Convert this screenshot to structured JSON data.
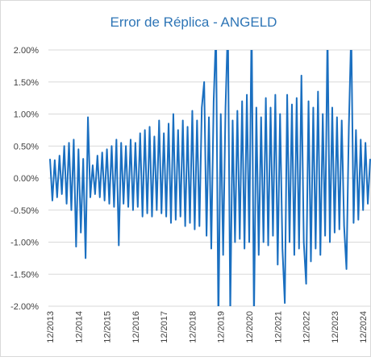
{
  "chart_data": {
    "type": "line",
    "title": "Error de Réplica - ANGELD",
    "categories": [
      "12/2013",
      null,
      null,
      null,
      null,
      null,
      null,
      null,
      null,
      null,
      null,
      null,
      "12/2014",
      null,
      null,
      null,
      null,
      null,
      null,
      null,
      null,
      null,
      null,
      null,
      "12/2015",
      null,
      null,
      null,
      null,
      null,
      null,
      null,
      null,
      null,
      null,
      null,
      "12/2016",
      null,
      null,
      null,
      null,
      null,
      null,
      null,
      null,
      null,
      null,
      null,
      "12/2017",
      null,
      null,
      null,
      null,
      null,
      null,
      null,
      null,
      null,
      null,
      null,
      "12/2018",
      null,
      null,
      null,
      null,
      null,
      null,
      null,
      null,
      null,
      null,
      null,
      "12/2019",
      null,
      null,
      null,
      null,
      null,
      null,
      null,
      null,
      null,
      null,
      null,
      "12/2020",
      null,
      null,
      null,
      null,
      null,
      null,
      null,
      null,
      null,
      null,
      null,
      "12/2021",
      null,
      null,
      null,
      null,
      null,
      null,
      null,
      null,
      null,
      null,
      null,
      "12/2022",
      null,
      null,
      null,
      null,
      null,
      null,
      null,
      null,
      null,
      null,
      null,
      "12/2023",
      null,
      null,
      null,
      null,
      null,
      null,
      null,
      null,
      null,
      null,
      null,
      "12/2024",
      null,
      null,
      null
    ],
    "series": [
      {
        "name": "Error de Réplica",
        "color": "#1a6fc0",
        "values": [
          0.3,
          -0.35,
          0.28,
          -0.3,
          0.35,
          -0.25,
          0.5,
          -0.4,
          0.55,
          -0.5,
          0.6,
          -1.07,
          0.45,
          -0.85,
          0.3,
          -1.25,
          0.95,
          -0.3,
          0.2,
          -0.25,
          0.35,
          -0.3,
          0.4,
          -0.35,
          0.45,
          -0.4,
          0.5,
          -0.45,
          0.6,
          -1.05,
          0.55,
          -0.4,
          0.5,
          -0.45,
          0.6,
          -0.5,
          0.55,
          -0.45,
          0.7,
          -0.6,
          0.75,
          -0.55,
          0.8,
          -0.6,
          0.65,
          -0.5,
          0.9,
          -0.55,
          0.7,
          -0.6,
          0.85,
          -0.7,
          1.0,
          -0.65,
          0.75,
          -0.6,
          0.9,
          -0.75,
          0.8,
          -0.7,
          1.05,
          -0.8,
          0.9,
          -0.75,
          1.1,
          1.5,
          -0.9,
          0.95,
          -1.1,
          1.2,
          2.3,
          -2.3,
          1.0,
          -1.2,
          1.1,
          2.4,
          -2.1,
          0.9,
          -1.0,
          1.05,
          -0.95,
          1.2,
          -1.1,
          1.3,
          -1.0,
          2.5,
          -2.2,
          1.1,
          -1.2,
          0.95,
          -1.0,
          1.25,
          -1.05,
          1.1,
          -0.9,
          1.3,
          -1.35,
          1.0,
          -1.1,
          -1.95,
          1.3,
          -1.0,
          1.15,
          -1.2,
          1.25,
          -1.1,
          1.6,
          -1.0,
          -1.65,
          1.2,
          -1.3,
          1.1,
          -1.1,
          1.35,
          -1.2,
          1.0,
          -0.9,
          2.3,
          -1.0,
          1.1,
          -0.85,
          0.95,
          -0.8,
          0.9,
          -0.75,
          -1.42,
          0.8,
          2.3,
          -0.7,
          0.75,
          -0.65,
          0.6,
          -0.5,
          0.55,
          -0.4,
          0.3
        ]
      }
    ],
    "ylim": [
      -2,
      2
    ],
    "yticks": [
      {
        "value": -2,
        "label": "-2.00%"
      },
      {
        "value": -1.5,
        "label": "-1.50%"
      },
      {
        "value": -1,
        "label": "-1.00%"
      },
      {
        "value": -0.5,
        "label": "-0.50%"
      },
      {
        "value": 0,
        "label": "0.00%"
      },
      {
        "value": 0.5,
        "label": "0.50%"
      },
      {
        "value": 1,
        "label": "1.00%"
      },
      {
        "value": 1.5,
        "label": "1.50%"
      },
      {
        "value": 2,
        "label": "2.00%"
      }
    ],
    "grid": true
  }
}
